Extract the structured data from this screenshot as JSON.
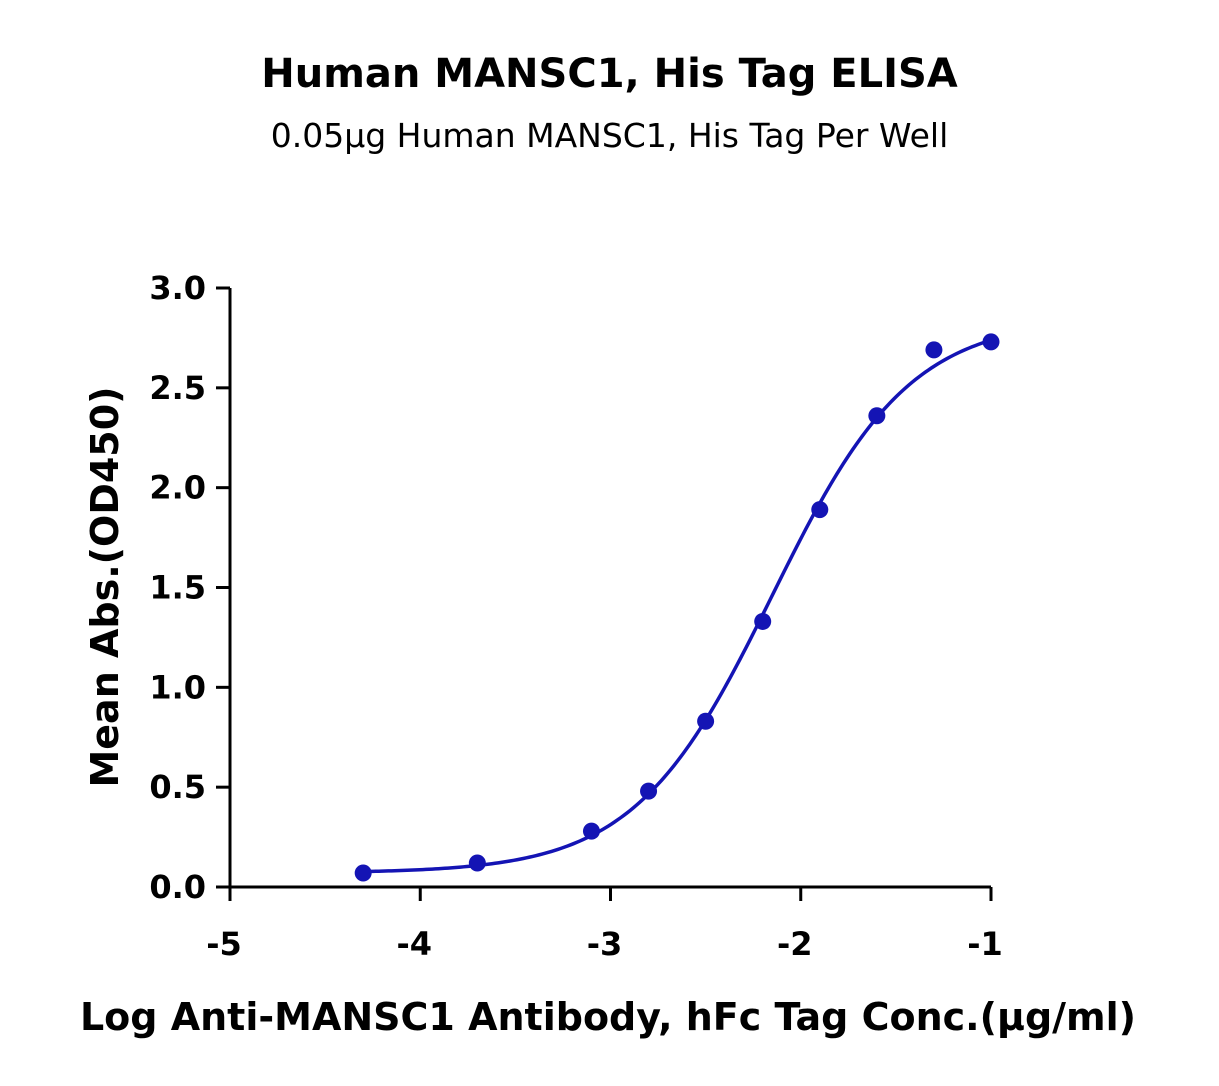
{
  "chart_data": {
    "type": "scatter",
    "title": "Human MANSC1, His Tag ELISA",
    "subtitle": "0.05μg Human MANSC1, His Tag Per Well",
    "xlabel": "Log  Anti-MANSC1 Antibody, hFc Tag Conc.(μg/ml)",
    "ylabel": "Mean Abs.(OD450)",
    "xlim": [
      -5,
      -1
    ],
    "ylim": [
      0,
      3
    ],
    "x_ticks": [
      "-5",
      "-4",
      "-3",
      "-2",
      "-1"
    ],
    "y_ticks": [
      "0.0",
      "0.5",
      "1.0",
      "1.5",
      "2.0",
      "2.5",
      "3.0"
    ],
    "grid": false,
    "color": "#1414b4",
    "series": [
      {
        "x": [
          -4.3,
          -3.7,
          -3.1,
          -2.8,
          -2.5,
          -2.2,
          -1.9,
          -1.6,
          -1.3,
          -1.0
        ],
        "values": [
          0.07,
          0.12,
          0.28,
          0.48,
          0.83,
          1.33,
          1.89,
          2.36,
          2.69,
          2.73
        ]
      }
    ],
    "fit": {
      "type": "4PL",
      "bottom": 0.07,
      "top": 2.85,
      "logEC50": -2.15,
      "hill": 1.2
    }
  }
}
